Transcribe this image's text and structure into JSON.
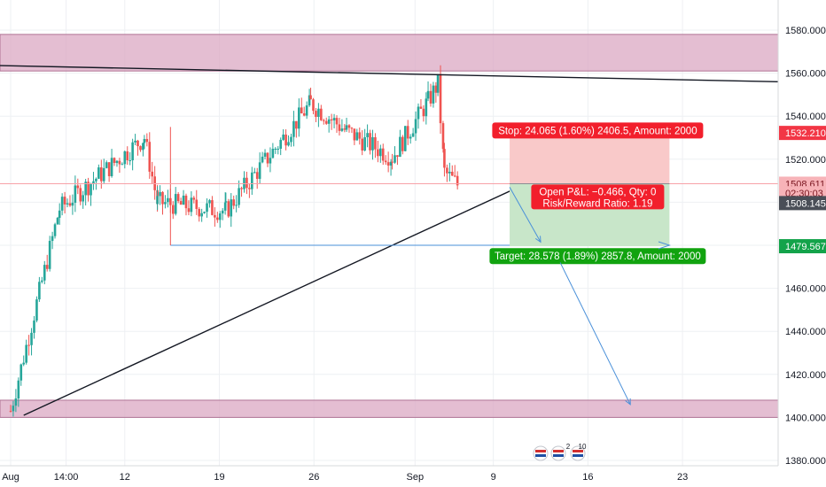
{
  "colors": {
    "up": "#26a69a",
    "down": "#ef5350",
    "zone_fill": "#dba8c3",
    "zone_stroke": "#b07394",
    "stop_fill": "#f9c9c9",
    "target_fill": "#c8e6c9",
    "stop_label": "#f21f2c",
    "target_label": "#11a30f",
    "blue_line": "#4a90d9",
    "grid": "#eef0f3",
    "axis_text": "#131722"
  },
  "price_axis": {
    "labels": [
      "1580.000",
      "1560.000",
      "1540.000",
      "1520.000",
      "1500.000",
      "1480.000",
      "1460.000",
      "1440.000",
      "1420.000",
      "1400.000",
      "1380.000"
    ],
    "values": [
      1580,
      1560,
      1540,
      1520,
      1500,
      1480,
      1460,
      1440,
      1420,
      1400,
      1380
    ],
    "tags": [
      {
        "text": "1532.210",
        "value": 1532.21,
        "bg": "#f23645",
        "fg": "#ffffff"
      },
      {
        "text": "1508.611",
        "value": 1508.611,
        "bg": "#f7b3b8",
        "fg": "#7a1620"
      },
      {
        "text": "02:30:03",
        "value": 1504.2,
        "bg": "#f7b3b8",
        "fg": "#7a1620"
      },
      {
        "text": "1508.145",
        "value": 1499.6,
        "bg": "#4a4e57",
        "fg": "#ffffff"
      },
      {
        "text": "1479.567",
        "value": 1479.567,
        "bg": "#13a34a",
        "fg": "#ffffff"
      }
    ]
  },
  "time_axis": {
    "labels": [
      "Aug",
      "14:00",
      "12",
      "19",
      "26",
      "Sep",
      "9",
      "16",
      "23"
    ],
    "positions": [
      0,
      17,
      35,
      64,
      93,
      124,
      148,
      177,
      206
    ]
  },
  "position_tool": {
    "stop_text": "Stop: 24.065 (1.60%) 2406.5, Amount: 2000",
    "pnl_line1": "Open P&L: −0.466, Qty: 0",
    "pnl_line2": "Risk/Reward Ratio: 1.19",
    "target_text": "Target: 28.578 (1.89%) 2857.8, Amount: 2000",
    "stop_price": 1532.21,
    "entry_price": 1508.611,
    "target_price": 1479.567
  },
  "event_badges": [
    "2",
    "10"
  ],
  "chart_data": {
    "type": "candlestick",
    "ylim": [
      1375,
      1590
    ],
    "zones": [
      {
        "low": 1561,
        "high": 1578
      },
      {
        "low": 1400,
        "high": 1408
      }
    ],
    "key_closes": [
      {
        "date": "Aug 1",
        "close": 1403
      },
      {
        "date": "Aug 7",
        "close": 1497
      },
      {
        "date": "Aug 11",
        "close": 1530
      },
      {
        "date": "Aug 13",
        "close": 1500
      },
      {
        "date": "Aug 21",
        "close": 1496
      },
      {
        "date": "Aug 25",
        "close": 1546
      },
      {
        "date": "Aug 28",
        "close": 1533
      },
      {
        "date": "Sep 1",
        "close": 1521
      },
      {
        "date": "Sep 4",
        "close": 1547
      },
      {
        "date": "Sep 5",
        "close": 1555
      },
      {
        "date": "Sep 6",
        "close": 1514
      },
      {
        "date": "Sep 8",
        "close": 1508.145
      }
    ]
  }
}
